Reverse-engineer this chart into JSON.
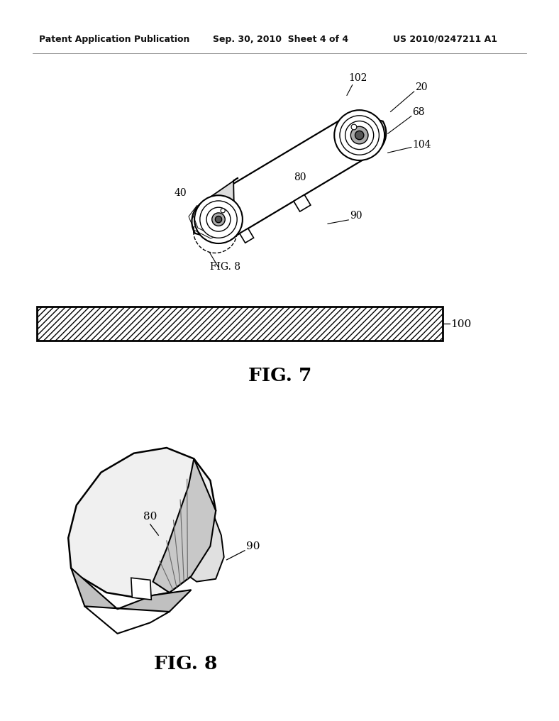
{
  "background_color": "#ffffff",
  "header_left": "Patent Application Publication",
  "header_center": "Sep. 30, 2010  Sheet 4 of 4",
  "header_right": "US 2010/0247211 A1",
  "fig7_label": "FIG. 7",
  "fig8_label": "FIG. 8",
  "label_100": "100",
  "label_20": "20",
  "label_40": "40",
  "label_68": "68",
  "label_80": "80",
  "label_90": "90",
  "label_102": "102",
  "label_104": "104",
  "label_fig8_ref": "FIG. 8"
}
